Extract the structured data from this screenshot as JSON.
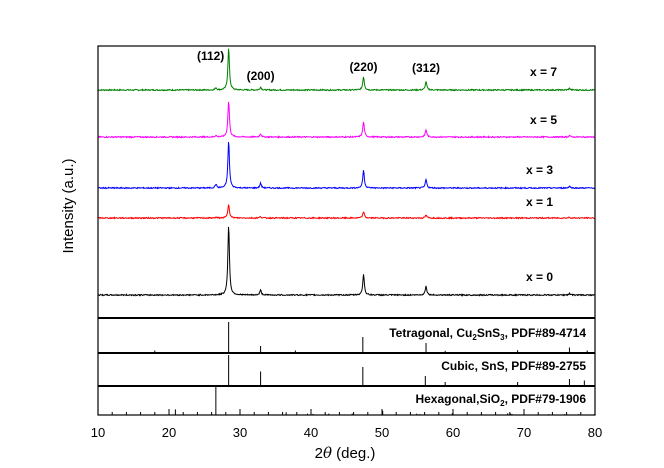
{
  "chart_data": {
    "type": "line",
    "title": "",
    "xlabel_prefix": "2",
    "xlabel_var": "θ",
    "xlabel_suffix": " (deg.)",
    "ylabel": "Intensity  (a.u.)",
    "xlim": [
      10,
      80
    ],
    "xticks": [
      10,
      20,
      30,
      40,
      50,
      60,
      70,
      80
    ],
    "grid": false,
    "peak_labels": [
      {
        "text": "(112)",
        "x": 28.4
      },
      {
        "text": "(200)",
        "x": 32.9
      },
      {
        "text": "(220)",
        "x": 47.4
      },
      {
        "text": "(312)",
        "x": 56.2
      }
    ],
    "series": [
      {
        "name": "x = 7",
        "color": "#008000",
        "peaks": [
          [
            26.6,
            0.05
          ],
          [
            28.4,
            1.0
          ],
          [
            32.9,
            0.07
          ],
          [
            47.4,
            0.32
          ],
          [
            56.2,
            0.2
          ],
          [
            76.4,
            0.04
          ]
        ]
      },
      {
        "name": "x = 5",
        "color": "#ff00ff",
        "peaks": [
          [
            26.6,
            0.04
          ],
          [
            28.4,
            1.0
          ],
          [
            32.9,
            0.09
          ],
          [
            47.4,
            0.42
          ],
          [
            56.2,
            0.2
          ],
          [
            76.4,
            0.04
          ]
        ]
      },
      {
        "name": "x = 3",
        "color": "#0000ff",
        "peaks": [
          [
            26.6,
            0.08
          ],
          [
            28.4,
            1.0
          ],
          [
            32.9,
            0.1
          ],
          [
            47.4,
            0.38
          ],
          [
            56.2,
            0.18
          ],
          [
            76.4,
            0.04
          ]
        ]
      },
      {
        "name": "x = 1",
        "color": "#ff0000",
        "peaks": [
          [
            26.6,
            0.05
          ],
          [
            28.4,
            1.0
          ],
          [
            32.9,
            0.1
          ],
          [
            47.4,
            0.45
          ],
          [
            56.2,
            0.2
          ],
          [
            76.4,
            0.05
          ]
        ]
      },
      {
        "name": "x = 0",
        "color": "#000000",
        "peaks": [
          [
            28.4,
            1.0
          ],
          [
            32.9,
            0.07
          ],
          [
            47.4,
            0.3
          ],
          [
            56.2,
            0.13
          ],
          [
            76.4,
            0.02
          ]
        ]
      }
    ],
    "references": [
      {
        "prefix": "Tetragonal, Cu",
        "sub1": "2",
        "mid": "SnS",
        "sub2": "3",
        "suffix": ", PDF#89-4714",
        "lines": [
          [
            18.0,
            0.05
          ],
          [
            28.4,
            1.0
          ],
          [
            32.9,
            0.2
          ],
          [
            37.8,
            0.05
          ],
          [
            47.3,
            0.5
          ],
          [
            56.2,
            0.3
          ],
          [
            58.9,
            0.04
          ],
          [
            69.1,
            0.06
          ],
          [
            76.4,
            0.15
          ],
          [
            78.9,
            0.05
          ]
        ]
      },
      {
        "text": "Cubic, SnS, PDF#89-2755",
        "lines": [
          [
            28.4,
            1.0
          ],
          [
            32.9,
            0.45
          ],
          [
            47.3,
            0.6
          ],
          [
            56.1,
            0.3
          ],
          [
            58.9,
            0.1
          ],
          [
            69.1,
            0.1
          ],
          [
            76.4,
            0.2
          ],
          [
            78.5,
            0.15
          ]
        ]
      },
      {
        "prefix": "Hexagonal,SiO",
        "sub1": "2",
        "suffix": ", PDF#79-1906",
        "lines": [
          [
            20.9,
            0.2
          ],
          [
            26.6,
            1.0
          ],
          [
            36.5,
            0.1
          ],
          [
            39.5,
            0.05
          ],
          [
            40.3,
            0.04
          ],
          [
            42.5,
            0.05
          ],
          [
            45.8,
            0.05
          ],
          [
            50.1,
            0.15
          ],
          [
            54.9,
            0.05
          ],
          [
            55.3,
            0.03
          ],
          [
            59.9,
            0.06
          ],
          [
            64.0,
            0.03
          ],
          [
            67.7,
            0.06
          ],
          [
            68.1,
            0.05
          ],
          [
            68.3,
            0.04
          ],
          [
            73.5,
            0.03
          ],
          [
            75.7,
            0.03
          ],
          [
            77.7,
            0.03
          ],
          [
            79.9,
            0.03
          ]
        ]
      }
    ]
  }
}
